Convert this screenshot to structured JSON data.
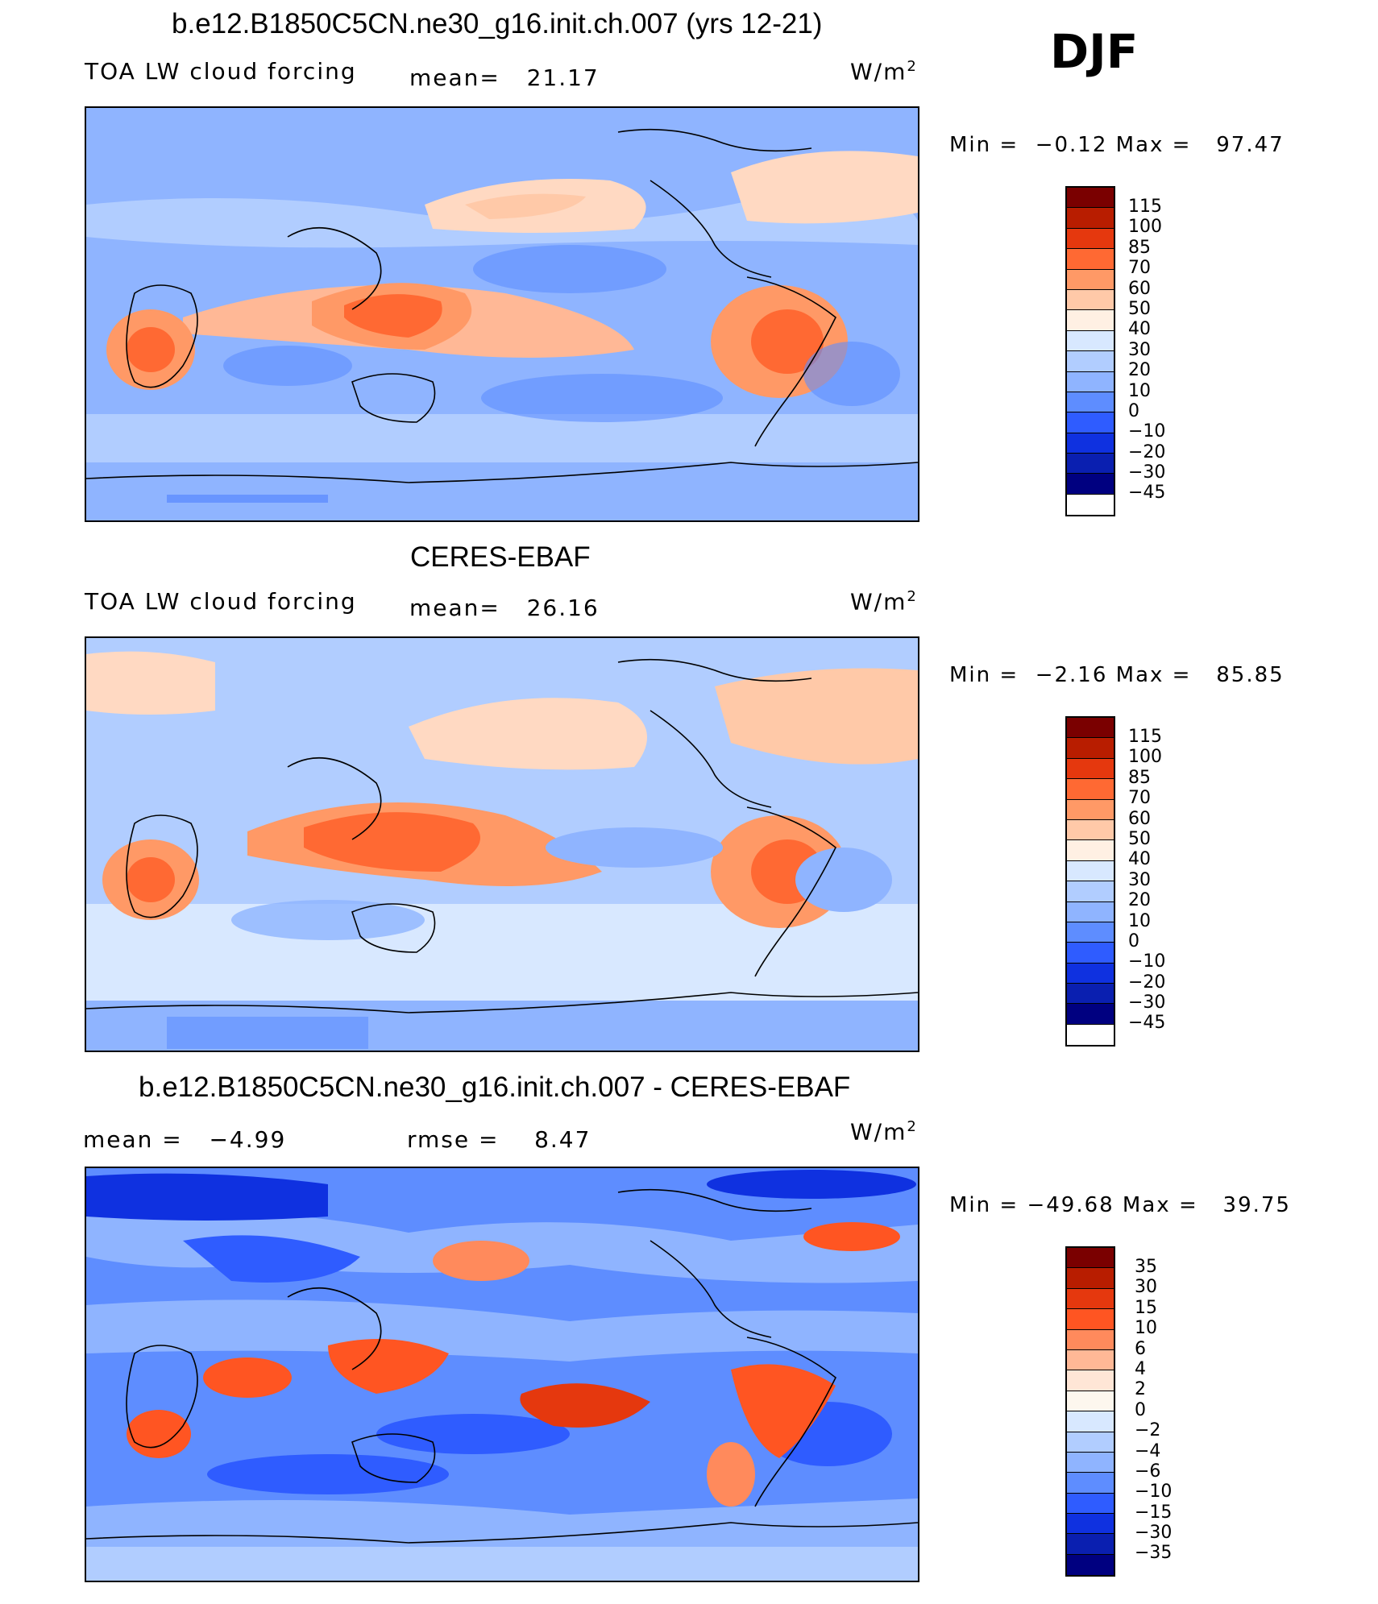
{
  "season": "DJF",
  "panels": [
    {
      "title": "b.e12.B1850C5CN.ne30_g16.init.ch.007 (yrs 12-21)",
      "left_label": "TOA LW cloud forcing",
      "stat1": "mean=   21.17",
      "stat2": "",
      "units": "W/m",
      "units_exp": "2",
      "minmax": "Min =  −0.12 Max =   97.47",
      "colorbar": {
        "colors": [
          "#7a0000",
          "#b81d00",
          "#e5380e",
          "#ff6933",
          "#ff9966",
          "#ffc9a8",
          "#fff0e3",
          "#d8e8ff",
          "#b1cdff",
          "#8fb4ff",
          "#5e8dff",
          "#2f5cff",
          "#0f31e0",
          "#0a1fb0",
          "#000080"
        ],
        "labels": [
          "115",
          "100",
          "85",
          "70",
          "60",
          "50",
          "40",
          "30",
          "20",
          "10",
          "0",
          "−10",
          "−20",
          "−30",
          "−45"
        ]
      }
    },
    {
      "title": "CERES-EBAF",
      "left_label": "TOA LW cloud forcing",
      "stat1": "mean=   26.16",
      "stat2": "",
      "units": "W/m",
      "units_exp": "2",
      "minmax": "Min =  −2.16 Max =   85.85",
      "colorbar": {
        "colors": [
          "#7a0000",
          "#b81d00",
          "#e5380e",
          "#ff6933",
          "#ff9966",
          "#ffc9a8",
          "#fff0e3",
          "#d8e8ff",
          "#b1cdff",
          "#8fb4ff",
          "#5e8dff",
          "#2f5cff",
          "#0f31e0",
          "#0a1fb0",
          "#000080"
        ],
        "labels": [
          "115",
          "100",
          "85",
          "70",
          "60",
          "50",
          "40",
          "30",
          "20",
          "10",
          "0",
          "−10",
          "−20",
          "−30",
          "−45"
        ]
      }
    },
    {
      "title": "b.e12.B1850C5CN.ne30_g16.init.ch.007 - CERES-EBAF",
      "left_label": "mean =   −4.99",
      "stat1": "rmse =    8.47",
      "stat2": "",
      "units": "W/m",
      "units_exp": "2",
      "minmax": "Min = −49.68 Max =   39.75",
      "colorbar": {
        "colors": [
          "#7a0000",
          "#b81d00",
          "#e5380e",
          "#ff5522",
          "#ff8a5c",
          "#ffb896",
          "#ffe6d6",
          "#fdf7ee",
          "#d8e8ff",
          "#b1cdff",
          "#8fb4ff",
          "#5e8dff",
          "#2f5cff",
          "#0f31e0",
          "#0a1fb0",
          "#000080"
        ],
        "labels": [
          "35",
          "30",
          "15",
          "10",
          "6",
          "4",
          "2",
          "0",
          "−2",
          "−4",
          "−6",
          "−10",
          "−15",
          "−30",
          "−35"
        ]
      }
    }
  ]
}
